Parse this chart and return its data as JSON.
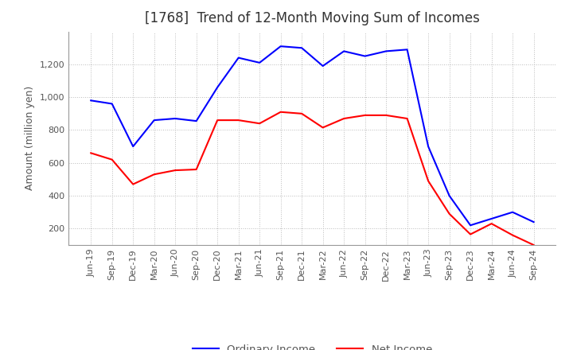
{
  "title": "[1768]  Trend of 12-Month Moving Sum of Incomes",
  "ylabel": "Amount (million yen)",
  "ylim": [
    100,
    1400
  ],
  "yticks": [
    200,
    400,
    600,
    800,
    1000,
    1200
  ],
  "background_color": "#ffffff",
  "grid_color": "#bbbbbb",
  "ordinary_income_color": "#0000ff",
  "net_income_color": "#ff0000",
  "x_labels": [
    "Jun-19",
    "Sep-19",
    "Dec-19",
    "Mar-20",
    "Jun-20",
    "Sep-20",
    "Dec-20",
    "Mar-21",
    "Jun-21",
    "Sep-21",
    "Dec-21",
    "Mar-22",
    "Jun-22",
    "Sep-22",
    "Dec-22",
    "Mar-23",
    "Jun-23",
    "Sep-23",
    "Dec-23",
    "Mar-24",
    "Jun-24",
    "Sep-24"
  ],
  "ordinary_income": [
    980,
    960,
    700,
    860,
    870,
    855,
    1060,
    1240,
    1210,
    1310,
    1300,
    1190,
    1280,
    1250,
    1280,
    1290,
    700,
    400,
    220,
    260,
    300,
    240
  ],
  "net_income": [
    660,
    620,
    470,
    530,
    555,
    560,
    860,
    860,
    840,
    910,
    900,
    815,
    870,
    890,
    890,
    870,
    490,
    290,
    165,
    230,
    160,
    100
  ],
  "legend_labels": [
    "Ordinary Income",
    "Net Income"
  ],
  "title_fontsize": 12,
  "label_fontsize": 9,
  "tick_fontsize": 8
}
